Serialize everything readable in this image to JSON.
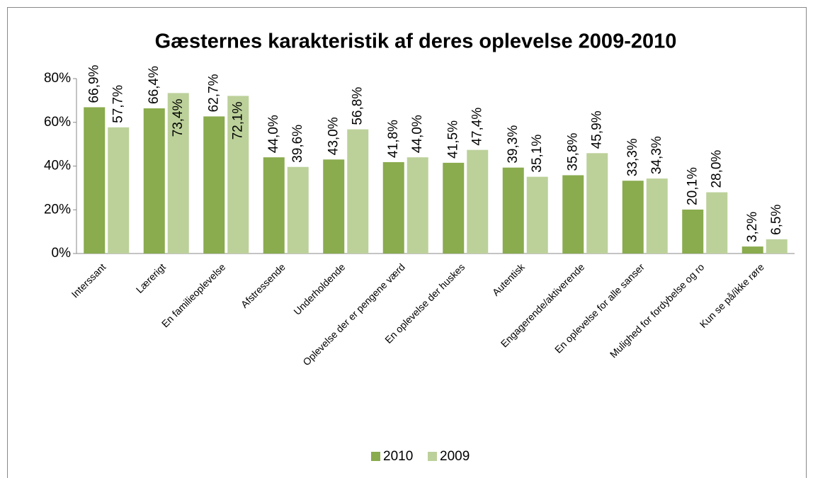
{
  "chart_data": {
    "type": "bar",
    "title": "Gæsternes karakteristik af deres oplevelse 2009-2010",
    "categories": [
      "Interssant",
      "Lærerigt",
      "En familieoplevelse",
      "Afstressende",
      "Underholdende",
      "Oplevelse der er pengene værd",
      "En oplevelse der huskes",
      "Autentisk",
      "Engagerende/aktiverende",
      "En oplevelse for alle sanser",
      "Mulighed for fordybelse og ro",
      "Kun se på/ikke røre"
    ],
    "series": [
      {
        "name": "2010",
        "color": "#8aab4e",
        "values": [
          66.9,
          66.4,
          62.7,
          44.0,
          43.0,
          41.8,
          41.5,
          39.3,
          35.8,
          33.3,
          20.1,
          3.2
        ],
        "value_labels": [
          "66,9%",
          "66,4%",
          "62,7%",
          "44,0%",
          "43,0%",
          "41,8%",
          "41,5%",
          "39,3%",
          "35,8%",
          "33,3%",
          "20,1%",
          "3,2%"
        ]
      },
      {
        "name": "2009",
        "color": "#bcd19a",
        "values": [
          57.7,
          73.4,
          72.1,
          39.6,
          56.8,
          44.0,
          47.4,
          35.1,
          45.9,
          34.3,
          28.0,
          6.5
        ],
        "value_labels": [
          "57,7%",
          "73,4%",
          "72,1%",
          "39,6%",
          "56,8%",
          "44,0%",
          "47,4%",
          "35,1%",
          "45,9%",
          "34,3%",
          "28,0%",
          "6,5%"
        ]
      }
    ],
    "ylim": [
      0,
      80
    ],
    "yticks": [
      {
        "value": 0,
        "label": "0%"
      },
      {
        "value": 20,
        "label": "20%"
      },
      {
        "value": 40,
        "label": "40%"
      },
      {
        "value": 60,
        "label": "60%"
      },
      {
        "value": 80,
        "label": "80%"
      }
    ],
    "grid": false,
    "legend": "bottom"
  }
}
